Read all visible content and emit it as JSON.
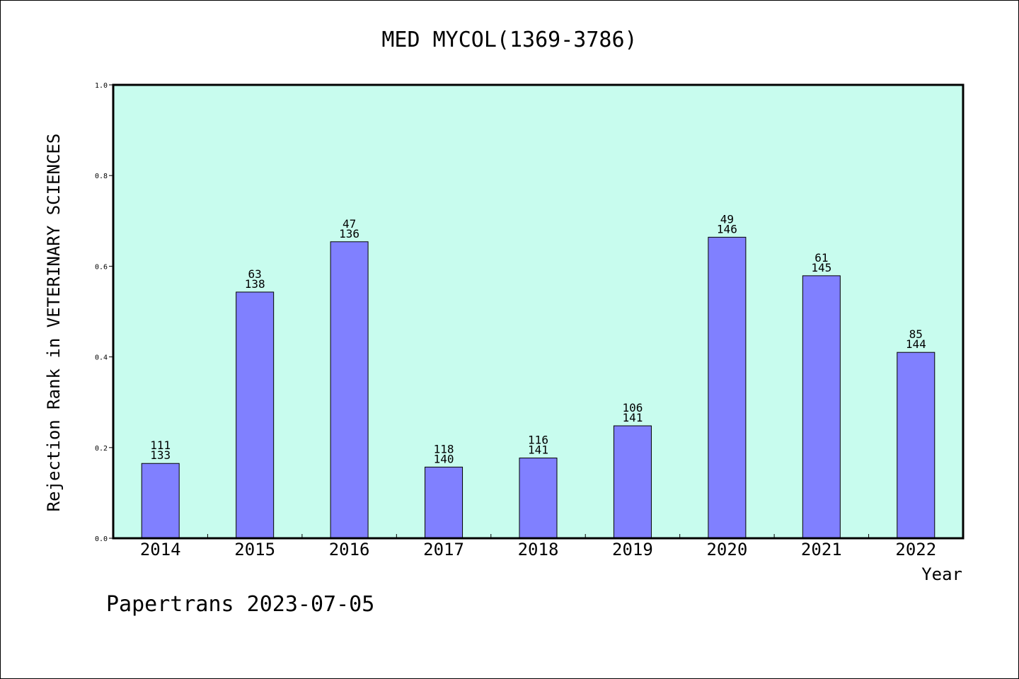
{
  "chart_data": {
    "type": "bar",
    "title": "MED MYCOL(1369-3786)",
    "xlabel": "Year",
    "ylabel": "Rejection Rank in VETERINARY SCIENCES",
    "categories": [
      "2014",
      "2015",
      "2016",
      "2017",
      "2018",
      "2019",
      "2020",
      "2021",
      "2022"
    ],
    "values": [
      0.165,
      0.543,
      0.654,
      0.157,
      0.177,
      0.248,
      0.664,
      0.579,
      0.41
    ],
    "rank_labels": [
      "111",
      "63",
      "47",
      "118",
      "116",
      "106",
      "49",
      "61",
      "85"
    ],
    "total_labels": [
      "133",
      "138",
      "136",
      "140",
      "141",
      "141",
      "146",
      "145",
      "144"
    ],
    "ylim": [
      0,
      1.0
    ],
    "yticks": [
      "0.0",
      "0.2",
      "0.4",
      "0.6",
      "0.8",
      "1.0"
    ],
    "grid": false,
    "legend": "none",
    "colors": {
      "bar": "#8080ff",
      "plot_background": "#c8fcee",
      "axis": "#000000"
    }
  },
  "footer": {
    "credit": "Papertrans 2023-07-05"
  }
}
